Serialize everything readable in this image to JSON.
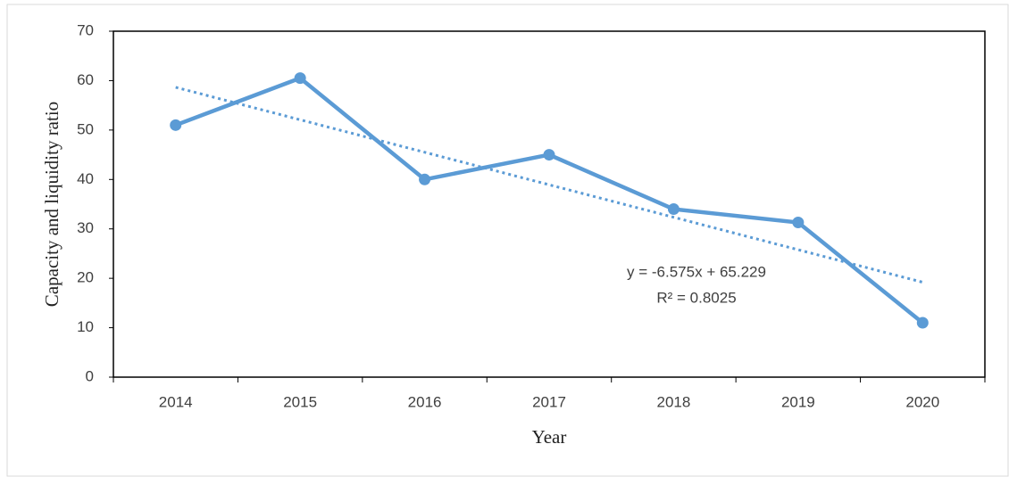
{
  "chart_data": {
    "type": "line",
    "x_label": "Year",
    "y_label": "Capacity and liquidity ratio",
    "categories": [
      "2014",
      "2015",
      "2016",
      "2017",
      "2018",
      "2019",
      "2020"
    ],
    "values": [
      51,
      60.5,
      40,
      45,
      34,
      31.3,
      11
    ],
    "color": "#5b9bd5",
    "ylim": [
      0,
      70
    ],
    "yticks": [
      0,
      10,
      20,
      30,
      40,
      50,
      60,
      70
    ],
    "grid": false,
    "trendline": {
      "type": "linear",
      "slope": -6.575,
      "intercept": 65.229,
      "r2": 0.8025,
      "equation_label": "y = -6.575x + 65.229",
      "r2_label": "R² = 0.8025",
      "style": "dotted"
    }
  }
}
